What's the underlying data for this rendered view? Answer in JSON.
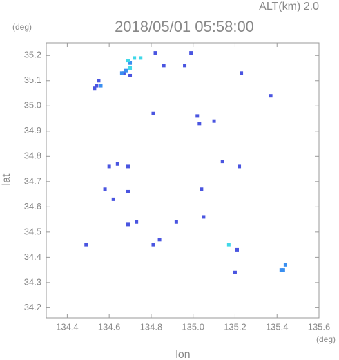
{
  "chart_data": {
    "type": "scatter",
    "title": "2018/05/01 05:58:00",
    "subtitle": "ALT(km) 2.0",
    "y_unit": "(deg)",
    "x_unit": "(deg)",
    "x_label": "lon",
    "y_label": "lat",
    "xlim": [
      134.3,
      135.6
    ],
    "ylim": [
      34.16,
      35.25
    ],
    "xticks": [
      134.4,
      134.6,
      134.8,
      {
        "value": 135,
        "label": "135.0"
      },
      135.2,
      135.4,
      135.6
    ],
    "yticks": [
      34.2,
      34.3,
      34.4,
      34.5,
      34.6,
      34.7,
      34.8,
      34.9,
      {
        "value": 35,
        "label": "35.0"
      },
      35.1,
      35.2
    ],
    "series": [
      {
        "color": "#4a55e0",
        "x": [
          134.54,
          134.55,
          134.53,
          134.82,
          134.99,
          134.86,
          134.96,
          135.23,
          135.37,
          134.81,
          135.02,
          135.03,
          135.1,
          134.6,
          134.64,
          134.69,
          135.14,
          135.22,
          134.58,
          134.69,
          135.04,
          134.62,
          135.05,
          134.73,
          134.69,
          134.92,
          134.49,
          134.81,
          134.84,
          135.2,
          135.21,
          134.67,
          134.7
        ],
        "values": [
          35.08,
          35.1,
          35.07,
          35.21,
          35.21,
          35.16,
          35.16,
          35.13,
          35.04,
          34.97,
          34.96,
          34.93,
          34.94,
          34.76,
          34.77,
          34.76,
          34.78,
          34.76,
          34.67,
          34.66,
          34.67,
          34.63,
          34.56,
          34.54,
          34.53,
          34.54,
          34.45,
          34.45,
          34.47,
          34.34,
          34.43,
          35.13,
          35.12
        ]
      },
      {
        "color": "#3a8ff0",
        "x": [
          134.68,
          134.56,
          135.42,
          135.43,
          135.44,
          134.7,
          134.66
        ],
        "values": [
          35.14,
          35.08,
          34.35,
          34.35,
          34.37,
          35.17,
          35.13
        ]
      },
      {
        "color": "#40d8e8",
        "x": [
          134.69,
          134.72,
          134.75,
          134.7,
          135.17
        ],
        "values": [
          35.18,
          35.19,
          35.19,
          35.15,
          34.45
        ]
      }
    ]
  }
}
